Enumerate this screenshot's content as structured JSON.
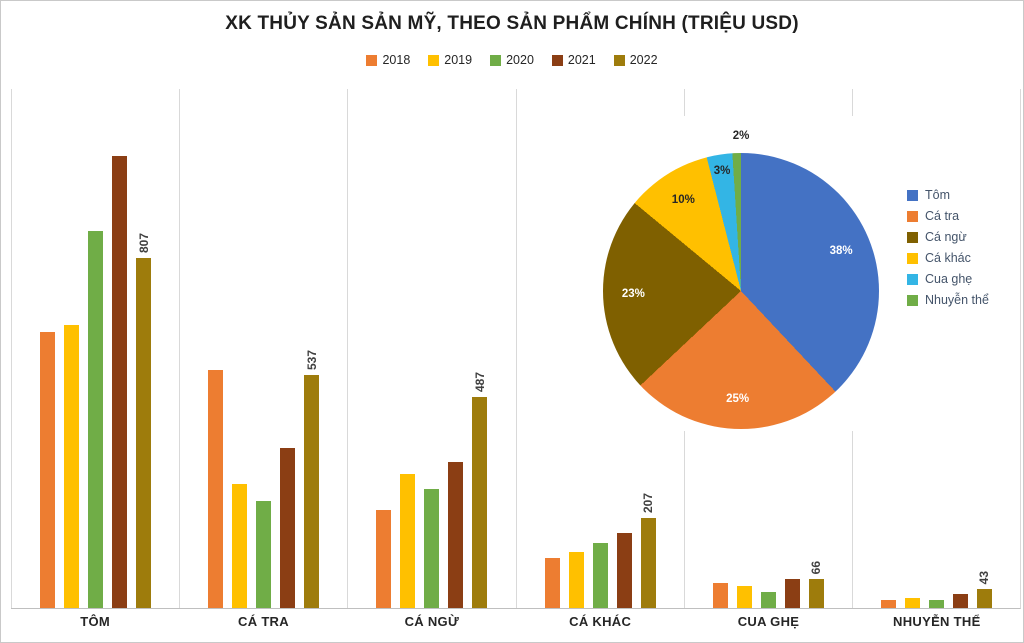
{
  "title": "XK THỦY SẢN SẢN MỸ, THEO SẢN PHẨM CHÍNH (TRIỆU USD)",
  "chart_data": [
    {
      "type": "bar",
      "title": "XK THỦY SẢN SẢN MỸ, THEO SẢN PHẨM CHÍNH (TRIỆU USD)",
      "categories": [
        "TÔM",
        "CÁ TRA",
        "CÁ NGỪ",
        "CÁ KHÁC",
        "CUA GHẸ",
        "NHUYỄN THỂ"
      ],
      "series": [
        {
          "name": "2018",
          "color": "#ED7D31",
          "values": [
            637,
            549,
            225,
            116,
            58,
            19
          ]
        },
        {
          "name": "2019",
          "color": "#FFC000",
          "values": [
            654,
            287,
            310,
            130,
            51,
            23
          ]
        },
        {
          "name": "2020",
          "color": "#70AD47",
          "values": [
            870,
            248,
            275,
            151,
            37,
            19
          ]
        },
        {
          "name": "2021",
          "color": "#8B3E14",
          "values": [
            1044,
            370,
            337,
            174,
            68,
            33
          ]
        },
        {
          "name": "2022",
          "color": "#9E7C0C",
          "values": [
            807,
            537,
            487,
            207,
            66,
            43
          ]
        }
      ],
      "labeled_series": "2022",
      "data_labels_2022": [
        807,
        537,
        487,
        207,
        66,
        43
      ],
      "xlabel": "",
      "ylabel": "",
      "ylim": [
        0,
        1200
      ],
      "grid": "vertical category separators only",
      "legend_position": "top"
    },
    {
      "type": "pie",
      "start_angle_deg": 0,
      "direction": "clockwise",
      "legend_position": "right",
      "slices": [
        {
          "label": "Tôm",
          "pct": 38,
          "color": "#4472C4",
          "label_color": "#FFFFFF",
          "label_pos": "inside"
        },
        {
          "label": "Cá tra",
          "pct": 25,
          "color": "#ED7D31",
          "label_color": "#FFFFFF",
          "label_pos": "inside"
        },
        {
          "label": "Cá ngừ",
          "pct": 23,
          "color": "#7F6000",
          "label_color": "#FFFFFF",
          "label_pos": "inside"
        },
        {
          "label": "Cá khác",
          "pct": 10,
          "color": "#FFC000",
          "label_color": "#262626",
          "label_pos": "inside"
        },
        {
          "label": "Cua ghẹ",
          "pct": 3,
          "color": "#33B5E5",
          "label_color": "#262626",
          "label_pos": "inside"
        },
        {
          "label": "Nhuyễn thể",
          "pct": 2,
          "color": "#70AD47",
          "label_color": "#262626",
          "label_pos": "outside"
        }
      ]
    }
  ]
}
